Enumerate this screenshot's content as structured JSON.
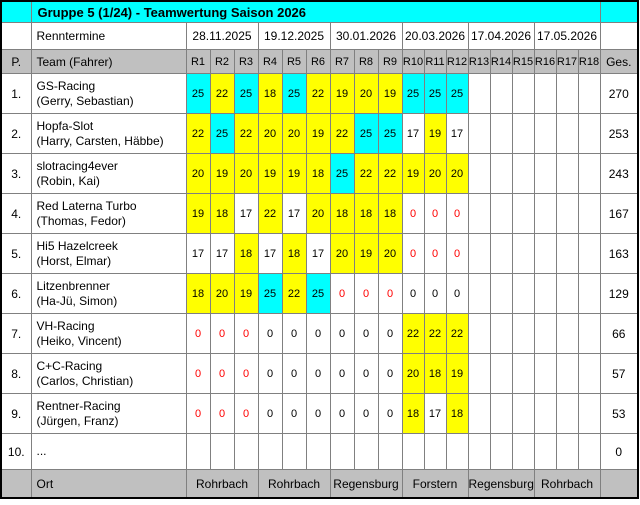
{
  "title": "Gruppe 5 (1/24) - Teamwertung Saison 2026",
  "colors": {
    "win_cyan": "#00ffff",
    "points_yellow": "#ffff00",
    "header_gray": "#c0c0c0",
    "missed_race_red": "#ff0000",
    "grid_border": "#808080",
    "outer_border": "#000000"
  },
  "race_dates": {
    "label": "Renntermine",
    "dates": [
      "28.11.2025",
      "19.12.2025",
      "30.01.2026",
      "20.03.2026",
      "17.04.2026",
      "17.05.2026"
    ]
  },
  "columns": {
    "position": "P.",
    "team": "Team (Fahrer)",
    "races": [
      "R1",
      "R2",
      "R3",
      "R4",
      "R5",
      "R6",
      "R7",
      "R8",
      "R9",
      "R10",
      "R11",
      "R12",
      "R13",
      "R14",
      "R15",
      "R16",
      "R17",
      "R18"
    ],
    "total": "Ges."
  },
  "standings": [
    {
      "position": "1.",
      "team": "GS-Racing",
      "drivers": "(Gerry, Sebastian)",
      "total": "270",
      "results": [
        [
          "25",
          "c"
        ],
        [
          "22",
          "y"
        ],
        [
          "25",
          "c"
        ],
        [
          "18",
          "y"
        ],
        [
          "25",
          "c"
        ],
        [
          "22",
          "y"
        ],
        [
          "19",
          "y"
        ],
        [
          "20",
          "y"
        ],
        [
          "19",
          "y"
        ],
        [
          "25",
          "c"
        ],
        [
          "25",
          "c"
        ],
        [
          "25",
          "c"
        ]
      ]
    },
    {
      "position": "2.",
      "team": "Hopfa-Slot",
      "drivers": "(Harry, Carsten, Häbbe)",
      "total": "253",
      "results": [
        [
          "22",
          "y"
        ],
        [
          "25",
          "c"
        ],
        [
          "22",
          "y"
        ],
        [
          "20",
          "y"
        ],
        [
          "20",
          "y"
        ],
        [
          "19",
          "y"
        ],
        [
          "22",
          "y"
        ],
        [
          "25",
          "c"
        ],
        [
          "25",
          "c"
        ],
        [
          "17",
          "w"
        ],
        [
          "19",
          "y"
        ],
        [
          "17",
          "w"
        ]
      ]
    },
    {
      "position": "3.",
      "team": "slotracing4ever",
      "drivers": "(Robin, Kai)",
      "total": "243",
      "results": [
        [
          "20",
          "y"
        ],
        [
          "19",
          "y"
        ],
        [
          "20",
          "y"
        ],
        [
          "19",
          "y"
        ],
        [
          "19",
          "y"
        ],
        [
          "18",
          "y"
        ],
        [
          "25",
          "c"
        ],
        [
          "22",
          "y"
        ],
        [
          "22",
          "y"
        ],
        [
          "19",
          "y"
        ],
        [
          "20",
          "y"
        ],
        [
          "20",
          "y"
        ]
      ]
    },
    {
      "position": "4.",
      "team": "Red Laterna Turbo",
      "drivers": "(Thomas, Fedor)",
      "total": "167",
      "results": [
        [
          "19",
          "y"
        ],
        [
          "18",
          "y"
        ],
        [
          "17",
          "w"
        ],
        [
          "22",
          "y"
        ],
        [
          "17",
          "w"
        ],
        [
          "20",
          "y"
        ],
        [
          "18",
          "y"
        ],
        [
          "18",
          "y"
        ],
        [
          "18",
          "y"
        ],
        [
          "0",
          "w",
          "r"
        ],
        [
          "0",
          "w",
          "r"
        ],
        [
          "0",
          "w",
          "r"
        ]
      ]
    },
    {
      "position": "5.",
      "team": "Hi5 Hazelcreek",
      "drivers": "(Horst, Elmar)",
      "total": "163",
      "results": [
        [
          "17",
          "w"
        ],
        [
          "17",
          "w"
        ],
        [
          "18",
          "y"
        ],
        [
          "17",
          "w"
        ],
        [
          "18",
          "y"
        ],
        [
          "17",
          "w"
        ],
        [
          "20",
          "y"
        ],
        [
          "19",
          "y"
        ],
        [
          "20",
          "y"
        ],
        [
          "0",
          "w",
          "r"
        ],
        [
          "0",
          "w",
          "r"
        ],
        [
          "0",
          "w",
          "r"
        ]
      ]
    },
    {
      "position": "6.",
      "team": "Litzenbrenner",
      "drivers": "(Ha-Jü, Simon)",
      "total": "129",
      "results": [
        [
          "18",
          "y"
        ],
        [
          "20",
          "y"
        ],
        [
          "19",
          "y"
        ],
        [
          "25",
          "c"
        ],
        [
          "22",
          "y"
        ],
        [
          "25",
          "c"
        ],
        [
          "0",
          "w",
          "r"
        ],
        [
          "0",
          "w",
          "r"
        ],
        [
          "0",
          "w",
          "r"
        ],
        [
          "0",
          "w"
        ],
        [
          "0",
          "w"
        ],
        [
          "0",
          "w"
        ]
      ]
    },
    {
      "position": "7.",
      "team": "VH-Racing",
      "drivers": "(Heiko, Vincent)",
      "total": "66",
      "results": [
        [
          "0",
          "w",
          "r"
        ],
        [
          "0",
          "w",
          "r"
        ],
        [
          "0",
          "w",
          "r"
        ],
        [
          "0",
          "w"
        ],
        [
          "0",
          "w"
        ],
        [
          "0",
          "w"
        ],
        [
          "0",
          "w"
        ],
        [
          "0",
          "w"
        ],
        [
          "0",
          "w"
        ],
        [
          "22",
          "y"
        ],
        [
          "22",
          "y"
        ],
        [
          "22",
          "y"
        ]
      ]
    },
    {
      "position": "8.",
      "team": "C+C-Racing",
      "drivers": "(Carlos, Christian)",
      "total": "57",
      "results": [
        [
          "0",
          "w",
          "r"
        ],
        [
          "0",
          "w",
          "r"
        ],
        [
          "0",
          "w",
          "r"
        ],
        [
          "0",
          "w"
        ],
        [
          "0",
          "w"
        ],
        [
          "0",
          "w"
        ],
        [
          "0",
          "w"
        ],
        [
          "0",
          "w"
        ],
        [
          "0",
          "w"
        ],
        [
          "20",
          "y"
        ],
        [
          "18",
          "y"
        ],
        [
          "19",
          "y"
        ]
      ]
    },
    {
      "position": "9.",
      "team": "Rentner-Racing",
      "drivers": "(Jürgen, Franz)",
      "total": "53",
      "results": [
        [
          "0",
          "w",
          "r"
        ],
        [
          "0",
          "w",
          "r"
        ],
        [
          "0",
          "w",
          "r"
        ],
        [
          "0",
          "w"
        ],
        [
          "0",
          "w"
        ],
        [
          "0",
          "w"
        ],
        [
          "0",
          "w"
        ],
        [
          "0",
          "w"
        ],
        [
          "0",
          "w"
        ],
        [
          "18",
          "y"
        ],
        [
          "17",
          "w"
        ],
        [
          "18",
          "y"
        ]
      ]
    },
    {
      "position": "10.",
      "team": "...",
      "drivers": "",
      "total": "0",
      "results": []
    }
  ],
  "venues": {
    "label": "Ort",
    "locations": [
      "Rohrbach",
      "Rohrbach",
      "Regensburg",
      "Forstern",
      "Regensburg",
      "Rohrbach"
    ]
  }
}
